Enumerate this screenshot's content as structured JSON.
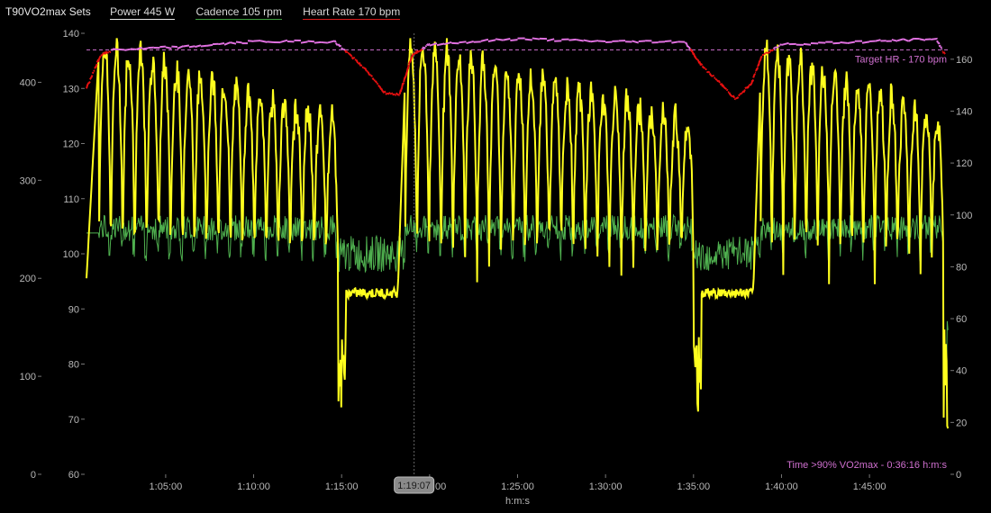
{
  "header": {
    "title": "T90VO2max Sets",
    "legend": [
      {
        "label": "Power  445 W"
      },
      {
        "label": "Cadence  105 rpm"
      },
      {
        "label": "Heart Rate  170 bpm"
      }
    ]
  },
  "chart_data": {
    "type": "line",
    "xlabel": "h:m:s",
    "x_ticks": [
      "1:05:00",
      "1:10:00",
      "1:15:00",
      "1:20:00",
      "1:25:00",
      "1:30:00",
      "1:35:00",
      "1:40:00",
      "1:45:00"
    ],
    "x_range_min": [
      60.5,
      109.5
    ],
    "cursor": "1:19:07",
    "cursor_min": 79.12,
    "power_axis": {
      "ticks": [
        "0",
        "100",
        "200",
        "300",
        "400"
      ],
      "range": [
        0,
        450
      ],
      "unit": "W"
    },
    "hr_axis": {
      "ticks": [
        "60",
        "70",
        "80",
        "90",
        "100",
        "110",
        "120",
        "130",
        "140"
      ],
      "range": [
        60,
        140
      ],
      "unit": "bpm"
    },
    "cadence_axis": {
      "ticks": [
        "0",
        "20",
        "40",
        "60",
        "80",
        "100",
        "120",
        "140",
        "160"
      ],
      "range": [
        0,
        170
      ],
      "unit": "rpm"
    },
    "target_hr": {
      "label": "Target HR - 170 bpm",
      "value": 137
    },
    "footer_note": "Time >90% VO2max - 0:36:16 h:m:s",
    "colors": {
      "power": "#ffff1e",
      "cadence": "#4fb04f",
      "hr_high": "#e070e0",
      "hr_low": "#e81010",
      "target": "#d070d0"
    },
    "blocks": [
      {
        "start": 60.5,
        "end": 61.2,
        "type": "warm"
      },
      {
        "start": 61.2,
        "end": 74.8,
        "type": "intervals",
        "reps": 20
      },
      {
        "start": 74.8,
        "end": 78.6,
        "type": "recovery"
      },
      {
        "start": 78.6,
        "end": 95.0,
        "type": "intervals",
        "reps": 24
      },
      {
        "start": 95.0,
        "end": 98.8,
        "type": "recovery"
      },
      {
        "start": 98.8,
        "end": 109.2,
        "type": "intervals",
        "reps": 16
      },
      {
        "start": 109.2,
        "end": 109.5,
        "type": "end"
      }
    ],
    "interval_peak_w": [
      440,
      410,
      400,
      380,
      360
    ],
    "interval_trough_w": 200,
    "recovery_power_w": 185,
    "heart_rate_series": [
      {
        "t": 60.5,
        "v": 130
      },
      {
        "t": 61.3,
        "v": 136
      },
      {
        "t": 62.0,
        "v": 137
      },
      {
        "t": 66.0,
        "v": 137.5
      },
      {
        "t": 70.0,
        "v": 138.5
      },
      {
        "t": 74.6,
        "v": 138.5
      },
      {
        "t": 75.5,
        "v": 136
      },
      {
        "t": 76.5,
        "v": 133
      },
      {
        "t": 77.5,
        "v": 129
      },
      {
        "t": 78.3,
        "v": 129
      },
      {
        "t": 79.0,
        "v": 136
      },
      {
        "t": 80.0,
        "v": 138
      },
      {
        "t": 85.0,
        "v": 139
      },
      {
        "t": 90.0,
        "v": 138.5
      },
      {
        "t": 94.5,
        "v": 138.5
      },
      {
        "t": 95.5,
        "v": 134
      },
      {
        "t": 96.5,
        "v": 131
      },
      {
        "t": 97.4,
        "v": 128
      },
      {
        "t": 98.3,
        "v": 131
      },
      {
        "t": 98.9,
        "v": 136
      },
      {
        "t": 100.0,
        "v": 138
      },
      {
        "t": 105.0,
        "v": 138.5
      },
      {
        "t": 108.8,
        "v": 139
      },
      {
        "t": 109.3,
        "v": 136
      }
    ]
  }
}
